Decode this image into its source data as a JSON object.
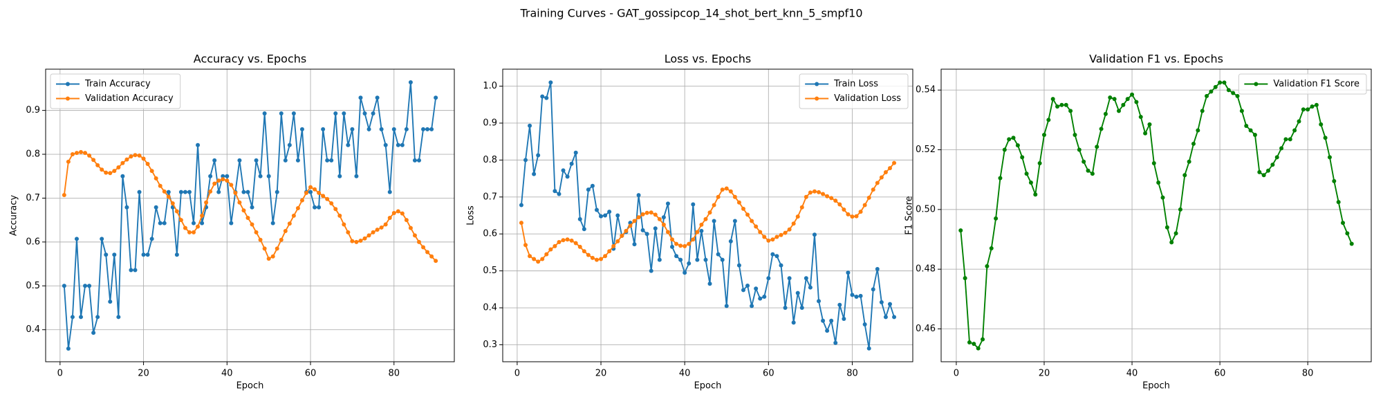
{
  "title": "Training Curves - GAT_gossipcop_14_shot_bert_knn_5_smpf10",
  "chart_data": [
    {
      "type": "line",
      "title": "Accuracy vs. Epochs",
      "xlabel": "Epoch",
      "ylabel": "Accuracy",
      "x": [
        1,
        2,
        3,
        4,
        5,
        6,
        7,
        8,
        9,
        10,
        11,
        12,
        13,
        14,
        15,
        16,
        17,
        18,
        19,
        20,
        21,
        22,
        23,
        24,
        25,
        26,
        27,
        28,
        29,
        30,
        31,
        32,
        33,
        34,
        35,
        36,
        37,
        38,
        39,
        40,
        41,
        42,
        43,
        44,
        45,
        46,
        47,
        48,
        49,
        50,
        51,
        52,
        53,
        54,
        55,
        56,
        57,
        58,
        59,
        60,
        61,
        62,
        63,
        64,
        65,
        66,
        67,
        68,
        69,
        70,
        71,
        72,
        73,
        74,
        75,
        76,
        77,
        78,
        79,
        80,
        81,
        82,
        83,
        84,
        85,
        86,
        87,
        88,
        89,
        90
      ],
      "series": [
        {
          "name": "Train Accuracy",
          "color": "#1f77b4",
          "values": [
            0.5,
            0.357,
            0.429,
            0.607,
            0.429,
            0.5,
            0.5,
            0.393,
            0.429,
            0.607,
            0.571,
            0.464,
            0.571,
            0.429,
            0.75,
            0.679,
            0.536,
            0.536,
            0.714,
            0.571,
            0.571,
            0.607,
            0.679,
            0.643,
            0.643,
            0.714,
            0.679,
            0.571,
            0.714,
            0.714,
            0.714,
            0.643,
            0.821,
            0.643,
            0.679,
            0.75,
            0.786,
            0.714,
            0.75,
            0.75,
            0.643,
            0.714,
            0.786,
            0.714,
            0.714,
            0.679,
            0.786,
            0.75,
            0.893,
            0.75,
            0.643,
            0.714,
            0.893,
            0.786,
            0.821,
            0.893,
            0.786,
            0.857,
            0.714,
            0.714,
            0.679,
            0.679,
            0.857,
            0.786,
            0.786,
            0.893,
            0.75,
            0.893,
            0.821,
            0.857,
            0.75,
            0.929,
            0.893,
            0.857,
            0.893,
            0.929,
            0.857,
            0.821,
            0.714,
            0.857,
            0.821,
            0.821,
            0.857,
            0.964,
            0.786,
            0.786,
            0.857,
            0.857,
            0.857,
            0.929
          ]
        },
        {
          "name": "Validation Accuracy",
          "color": "#ff7f0e",
          "values": [
            0.707,
            0.783,
            0.8,
            0.803,
            0.805,
            0.803,
            0.797,
            0.787,
            0.775,
            0.765,
            0.758,
            0.757,
            0.762,
            0.77,
            0.78,
            0.788,
            0.795,
            0.798,
            0.797,
            0.79,
            0.778,
            0.762,
            0.745,
            0.728,
            0.715,
            0.703,
            0.688,
            0.67,
            0.65,
            0.632,
            0.622,
            0.622,
            0.635,
            0.66,
            0.69,
            0.715,
            0.733,
            0.74,
            0.743,
            0.74,
            0.73,
            0.712,
            0.69,
            0.672,
            0.655,
            0.64,
            0.622,
            0.605,
            0.585,
            0.562,
            0.567,
            0.585,
            0.605,
            0.625,
            0.642,
            0.66,
            0.677,
            0.695,
            0.712,
            0.725,
            0.72,
            0.712,
            0.705,
            0.698,
            0.688,
            0.675,
            0.66,
            0.64,
            0.622,
            0.602,
            0.6,
            0.603,
            0.608,
            0.615,
            0.622,
            0.628,
            0.633,
            0.64,
            0.655,
            0.666,
            0.67,
            0.665,
            0.65,
            0.632,
            0.615,
            0.6,
            0.588,
            0.577,
            0.567,
            0.557
          ]
        }
      ],
      "xlim": [
        -3.45,
        94.45
      ],
      "ylim": [
        0.327,
        0.994
      ],
      "xticks": [
        0,
        20,
        40,
        60,
        80
      ],
      "yticks": [
        0.4,
        0.5,
        0.6,
        0.7,
        0.8,
        0.9
      ],
      "grid": true,
      "legend": "upper left"
    },
    {
      "type": "line",
      "title": "Loss vs. Epochs",
      "xlabel": "Epoch",
      "ylabel": "Loss",
      "x": [
        1,
        2,
        3,
        4,
        5,
        6,
        7,
        8,
        9,
        10,
        11,
        12,
        13,
        14,
        15,
        16,
        17,
        18,
        19,
        20,
        21,
        22,
        23,
        24,
        25,
        26,
        27,
        28,
        29,
        30,
        31,
        32,
        33,
        34,
        35,
        36,
        37,
        38,
        39,
        40,
        41,
        42,
        43,
        44,
        45,
        46,
        47,
        48,
        49,
        50,
        51,
        52,
        53,
        54,
        55,
        56,
        57,
        58,
        59,
        60,
        61,
        62,
        63,
        64,
        65,
        66,
        67,
        68,
        69,
        70,
        71,
        72,
        73,
        74,
        75,
        76,
        77,
        78,
        79,
        80,
        81,
        82,
        83,
        84,
        85,
        86,
        87,
        88,
        89,
        90
      ],
      "series": [
        {
          "name": "Train Loss",
          "color": "#1f77b4",
          "values": [
            0.678,
            0.8,
            0.893,
            0.762,
            0.813,
            0.972,
            0.968,
            1.01,
            0.716,
            0.708,
            0.772,
            0.755,
            0.79,
            0.82,
            0.64,
            0.613,
            0.72,
            0.73,
            0.665,
            0.648,
            0.65,
            0.66,
            0.56,
            0.65,
            0.595,
            0.605,
            0.63,
            0.572,
            0.705,
            0.61,
            0.6,
            0.5,
            0.615,
            0.53,
            0.645,
            0.682,
            0.565,
            0.54,
            0.53,
            0.495,
            0.52,
            0.68,
            0.53,
            0.608,
            0.53,
            0.465,
            0.635,
            0.545,
            0.53,
            0.405,
            0.58,
            0.635,
            0.515,
            0.448,
            0.46,
            0.405,
            0.452,
            0.425,
            0.43,
            0.48,
            0.545,
            0.54,
            0.515,
            0.4,
            0.48,
            0.36,
            0.44,
            0.4,
            0.48,
            0.455,
            0.598,
            0.418,
            0.365,
            0.338,
            0.365,
            0.305,
            0.408,
            0.37,
            0.495,
            0.435,
            0.43,
            0.432,
            0.355,
            0.29,
            0.45,
            0.505,
            0.415,
            0.375,
            0.41,
            0.375
          ]
        },
        {
          "name": "Validation Loss",
          "color": "#ff7f0e",
          "values": [
            0.63,
            0.57,
            0.54,
            0.532,
            0.525,
            0.532,
            0.545,
            0.558,
            0.567,
            0.578,
            0.583,
            0.585,
            0.582,
            0.575,
            0.565,
            0.553,
            0.543,
            0.535,
            0.53,
            0.532,
            0.54,
            0.553,
            0.567,
            0.58,
            0.595,
            0.608,
            0.622,
            0.635,
            0.645,
            0.653,
            0.657,
            0.658,
            0.652,
            0.64,
            0.625,
            0.605,
            0.585,
            0.573,
            0.568,
            0.567,
            0.573,
            0.585,
            0.605,
            0.625,
            0.64,
            0.658,
            0.678,
            0.7,
            0.72,
            0.723,
            0.715,
            0.7,
            0.685,
            0.668,
            0.652,
            0.635,
            0.62,
            0.605,
            0.592,
            0.582,
            0.585,
            0.592,
            0.597,
            0.603,
            0.612,
            0.628,
            0.647,
            0.672,
            0.7,
            0.712,
            0.715,
            0.713,
            0.708,
            0.702,
            0.697,
            0.69,
            0.68,
            0.666,
            0.653,
            0.647,
            0.648,
            0.66,
            0.678,
            0.698,
            0.72,
            0.738,
            0.753,
            0.767,
            0.778,
            0.792
          ]
        }
      ],
      "xlim": [
        -3.45,
        94.45
      ],
      "ylim": [
        0.254,
        1.046
      ],
      "xticks": [
        0,
        20,
        40,
        60,
        80
      ],
      "yticks": [
        0.3,
        0.4,
        0.5,
        0.6,
        0.7,
        0.8,
        0.9,
        {
          "value": 1,
          "label": "1.0"
        }
      ],
      "grid": true,
      "legend": "upper right"
    },
    {
      "type": "line",
      "title": "Validation F1 vs. Epochs",
      "xlabel": "Epoch",
      "ylabel": "F1 Score",
      "x": [
        1,
        2,
        3,
        4,
        5,
        6,
        7,
        8,
        9,
        10,
        11,
        12,
        13,
        14,
        15,
        16,
        17,
        18,
        19,
        20,
        21,
        22,
        23,
        24,
        25,
        26,
        27,
        28,
        29,
        30,
        31,
        32,
        33,
        34,
        35,
        36,
        37,
        38,
        39,
        40,
        41,
        42,
        43,
        44,
        45,
        46,
        47,
        48,
        49,
        50,
        51,
        52,
        53,
        54,
        55,
        56,
        57,
        58,
        59,
        60,
        61,
        62,
        63,
        64,
        65,
        66,
        67,
        68,
        69,
        70,
        71,
        72,
        73,
        74,
        75,
        76,
        77,
        78,
        79,
        80,
        81,
        82,
        83,
        84,
        85,
        86,
        87,
        88,
        89,
        90
      ],
      "series": [
        {
          "name": "Validation F1 Score",
          "color": "#008000",
          "values": [
            0.493,
            0.477,
            0.4555,
            0.455,
            0.4535,
            0.4565,
            0.481,
            0.487,
            0.497,
            0.5105,
            0.52,
            0.5235,
            0.524,
            0.5215,
            0.5175,
            0.512,
            0.509,
            0.505,
            0.5155,
            0.525,
            0.53,
            0.537,
            0.5345,
            0.535,
            0.535,
            0.533,
            0.525,
            0.52,
            0.516,
            0.513,
            0.512,
            0.521,
            0.527,
            0.532,
            0.5375,
            0.537,
            0.533,
            0.535,
            0.537,
            0.5385,
            0.536,
            0.531,
            0.5255,
            0.5285,
            0.5155,
            0.509,
            0.504,
            0.494,
            0.489,
            0.492,
            0.5,
            0.5115,
            0.516,
            0.522,
            0.5265,
            0.533,
            0.538,
            0.5395,
            0.541,
            0.5425,
            0.5425,
            0.54,
            0.539,
            0.538,
            0.533,
            0.528,
            0.5265,
            0.525,
            0.5125,
            0.5115,
            0.513,
            0.515,
            0.5175,
            0.5205,
            0.5235,
            0.5235,
            0.5265,
            0.5295,
            0.5335,
            0.5335,
            0.5345,
            0.535,
            0.5285,
            0.524,
            0.5175,
            0.5095,
            0.5025,
            0.4955,
            0.492,
            0.4885
          ]
        }
      ],
      "xlim": [
        -3.45,
        94.45
      ],
      "ylim": [
        0.449,
        0.547
      ],
      "xticks": [
        0,
        20,
        40,
        60,
        80
      ],
      "yticks": [
        0.46,
        0.48,
        {
          "value": 0.5,
          "label": "0.50"
        },
        0.52,
        0.54
      ],
      "grid": true,
      "legend": "upper right"
    }
  ]
}
